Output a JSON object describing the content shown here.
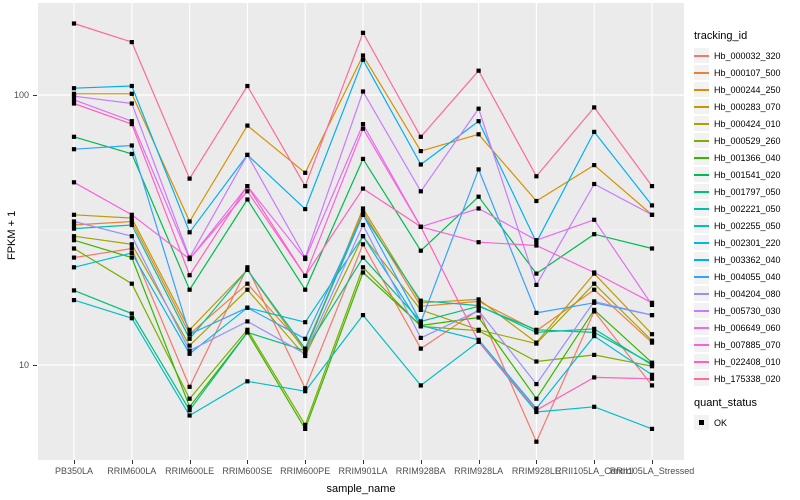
{
  "figure": {
    "background": "#FFFFFF",
    "panel_background": "#EBEBEB",
    "gridline_color": "#FFFFFF",
    "tick_color": "#333333",
    "axis_text_color": "#4D4D4D"
  },
  "axes": {
    "x_title": "sample_name",
    "y_title": "FPKM + 1",
    "y_ticks": [
      {
        "label": "100",
        "value": 100
      },
      {
        "label": "10",
        "value": 10
      }
    ],
    "y_minor_breaks": [
      31.62
    ],
    "y_scale": "log10"
  },
  "legend": {
    "tracking_title": "tracking_id",
    "quant_title": "quant_status",
    "quant_items": [
      {
        "label": "OK",
        "shape": "black-square"
      }
    ]
  },
  "chart_data": {
    "type": "line",
    "title": "",
    "xlabel": "sample_name",
    "ylabel": "FPKM + 1",
    "y_scale": "log10",
    "ylim": [
      3.9,
      215
    ],
    "grid": true,
    "legend_position": "right",
    "point_shape": "filled-black-square",
    "point_legend": {
      "title": "quant_status",
      "items": [
        "OK"
      ]
    },
    "categories": [
      "PB350LA",
      "RRIM600LA",
      "RRIM600LE",
      "RRIM600SE",
      "RRIM600PE",
      "RRIM901LA",
      "RRIM928BA",
      "RRIM928LA",
      "RRIM928LE",
      "RRII105LA_Control",
      "RRII105LA_Stressed"
    ],
    "series": [
      {
        "name": "Hb_000032_320",
        "color": "#F8766D",
        "values": [
          25,
          27,
          8.3,
          23,
          8.2,
          28,
          11.5,
          16,
          5.2,
          15.8,
          8.4
        ]
      },
      {
        "name": "Hb_000107_500",
        "color": "#EA8331",
        "values": [
          33,
          34,
          13,
          20,
          11.5,
          37,
          16.5,
          17.2,
          13.4,
          19,
          12.1
        ]
      },
      {
        "name": "Hb_000244_250",
        "color": "#D89000",
        "values": [
          101,
          101,
          34,
          77,
          51.5,
          140,
          62,
          71.5,
          40.5,
          55,
          36
        ]
      },
      {
        "name": "Hb_000283_070",
        "color": "#C09B00",
        "values": [
          36,
          35,
          13.5,
          22.5,
          11.2,
          38,
          17,
          17.5,
          12.1,
          21.8,
          13
        ]
      },
      {
        "name": "Hb_000424_010",
        "color": "#A3A500",
        "values": [
          30,
          28,
          11.8,
          19,
          10.8,
          30,
          16,
          13.5,
          12,
          20,
          12.3
        ]
      },
      {
        "name": "Hb_000529_260",
        "color": "#7CAE00",
        "values": [
          27,
          20,
          7.5,
          13.5,
          6.0,
          23,
          13.9,
          13.4,
          10.3,
          10.9,
          9.9
        ]
      },
      {
        "name": "Hb_001366_040",
        "color": "#39B600",
        "values": [
          29,
          25,
          7.0,
          13.2,
          5.8,
          22,
          14,
          15,
          7.5,
          16,
          10.2
        ]
      },
      {
        "name": "Hb_001541_020",
        "color": "#00BB4E",
        "values": [
          70,
          60.5,
          19,
          41,
          19,
          58,
          26.5,
          42,
          21.8,
          30.5,
          27
        ]
      },
      {
        "name": "Hb_001797_050",
        "color": "#00BF7D",
        "values": [
          18.9,
          15.5,
          6.8,
          13.2,
          11.3,
          25,
          14.5,
          16.5,
          13.5,
          13.2,
          10.1
        ]
      },
      {
        "name": "Hb_002221_050",
        "color": "#00C1A3",
        "values": [
          32,
          33,
          12.5,
          22.5,
          11.5,
          36,
          17.3,
          16.6,
          13.2,
          13.6,
          10
        ]
      },
      {
        "name": "Hb_002255_050",
        "color": "#00BFC4",
        "values": [
          17.4,
          14.9,
          6.5,
          8.7,
          8.0,
          15.3,
          8.4,
          12.2,
          6.7,
          7.0,
          5.8
        ]
      },
      {
        "name": "Hb_002301_220",
        "color": "#00BADE",
        "values": [
          23,
          26,
          11,
          16.3,
          14.4,
          30,
          14,
          12.4,
          6.9,
          12.8,
          9.2
        ]
      },
      {
        "name": "Hb_003362_040",
        "color": "#00B0F6",
        "values": [
          106,
          108,
          31,
          60,
          37.8,
          135,
          55.3,
          80,
          28.5,
          73,
          39
        ]
      },
      {
        "name": "Hb_004055_040",
        "color": "#35A2FF",
        "values": [
          63,
          65,
          13,
          16.3,
          12.5,
          36,
          14.4,
          53,
          15.6,
          17,
          15.3
        ]
      },
      {
        "name": "Hb_004204_080",
        "color": "#9590FF",
        "values": [
          34,
          30,
          11.3,
          14.5,
          11,
          33,
          12.6,
          15.9,
          8.5,
          17.2,
          15.3
        ]
      },
      {
        "name": "Hb_005730_030",
        "color": "#C77CFF",
        "values": [
          99,
          93,
          25,
          60,
          25,
          103,
          44,
          89,
          19.8,
          46.8,
          36
        ]
      },
      {
        "name": "Hb_006649_060",
        "color": "#E76BF3",
        "values": [
          96,
          80,
          24.7,
          46,
          24.7,
          78,
          32.5,
          38,
          29,
          34.5,
          16.7
        ]
      },
      {
        "name": "Hb_007885_070",
        "color": "#FA62DB",
        "values": [
          47.5,
          36,
          24.7,
          44,
          21.4,
          75,
          32.5,
          28.5,
          27.7,
          22,
          17
        ]
      },
      {
        "name": "Hb_022408_010",
        "color": "#FF62BC",
        "values": [
          93,
          78,
          21.5,
          46,
          21.4,
          45,
          32.5,
          12.2,
          6.8,
          9.0,
          8.9
        ]
      },
      {
        "name": "Hb_175338_020",
        "color": "#FF6A98",
        "values": [
          184,
          157,
          49,
          108,
          46,
          170,
          70,
          123,
          50,
          90,
          46
        ]
      }
    ]
  }
}
